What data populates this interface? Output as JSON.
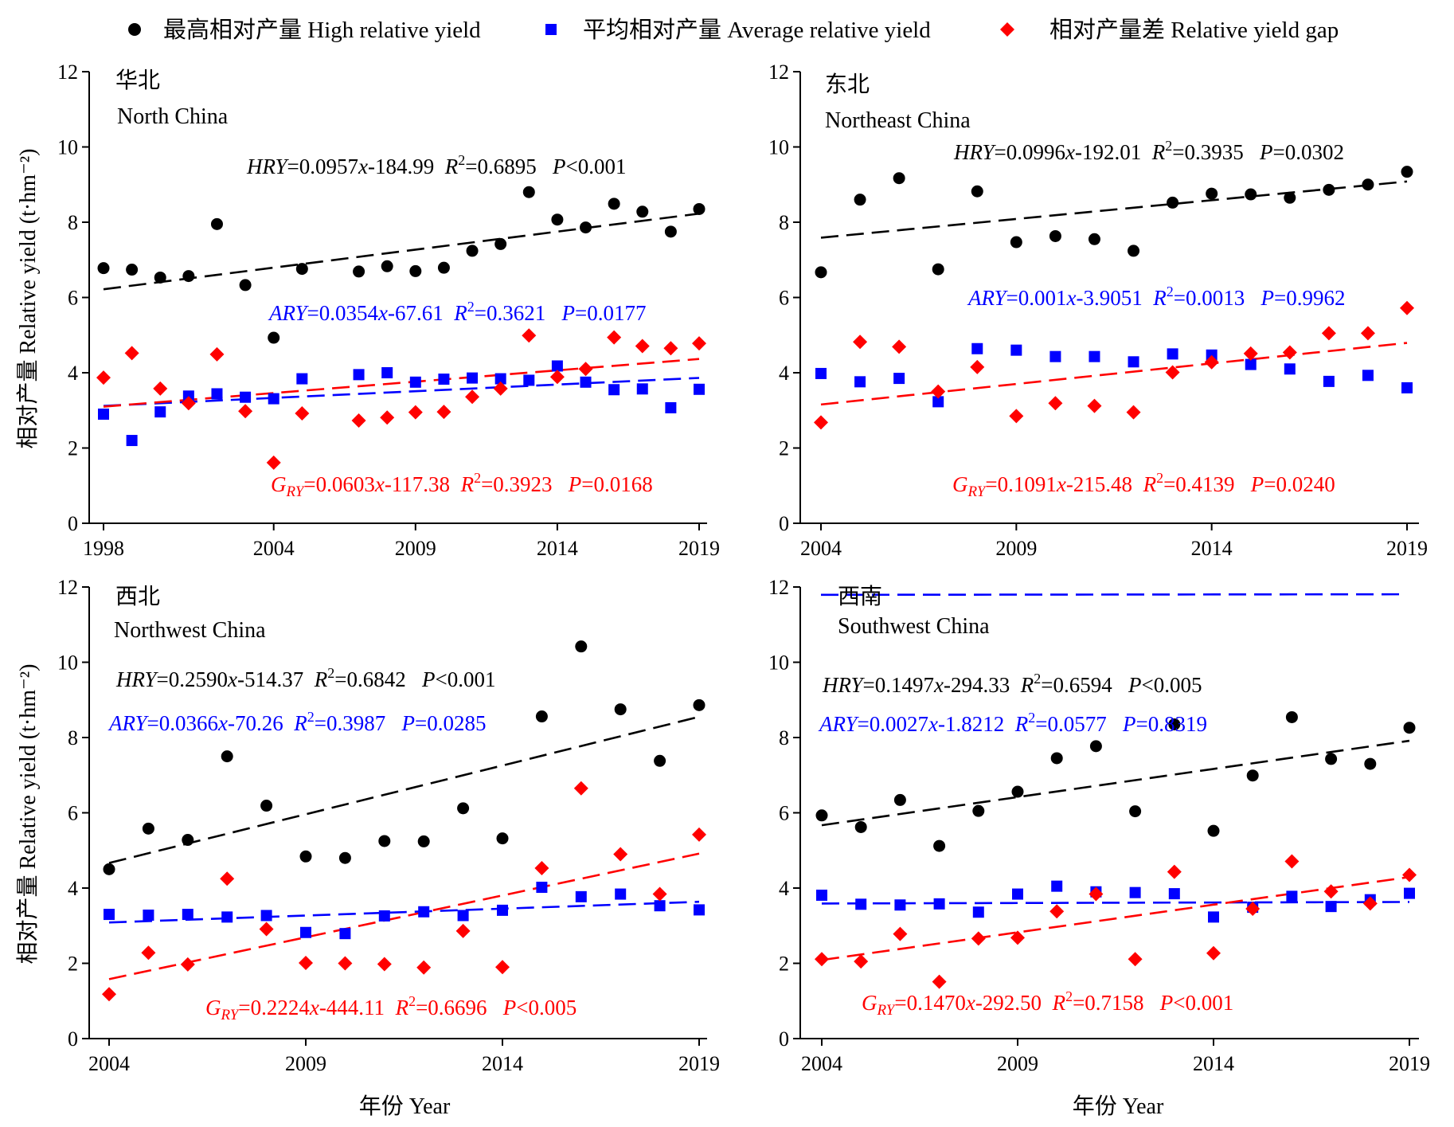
{
  "legend": {
    "items": [
      {
        "key": "hry",
        "label": "最高相对产量 High relative yield",
        "color": "#000000",
        "marker": "circle"
      },
      {
        "key": "ary",
        "label": "平均相对产量  Average relative yield",
        "color": "#0000ff",
        "marker": "square"
      },
      {
        "key": "gry",
        "label": "相对产量差 Relative yield gap",
        "color": "#ff0000",
        "marker": "diamond"
      }
    ]
  },
  "axes": {
    "ylabel": "相对产量 Relative yield (t·hm⁻²)",
    "xlabel": "年份 Year"
  },
  "colors": {
    "hry": "#000000",
    "ary": "#0000ff",
    "gry": "#ff0000"
  },
  "chart_data": [
    {
      "type": "scatter",
      "region_cn": "华北",
      "region_en": "North China",
      "xlim": [
        1998,
        2019
      ],
      "xticks": [
        1998,
        2004,
        2009,
        2014,
        2019
      ],
      "ylim": [
        0,
        12
      ],
      "yticks": [
        0,
        2,
        4,
        6,
        8,
        10,
        12
      ],
      "series": [
        {
          "key": "hry",
          "x": [
            1998,
            1999,
            2000,
            2001,
            2002,
            2003,
            2004,
            2005,
            2007,
            2008,
            2009,
            2010,
            2011,
            2012,
            2013,
            2014,
            2015,
            2016,
            2017,
            2018,
            2019
          ],
          "y": [
            6.78,
            6.74,
            6.53,
            6.57,
            7.95,
            6.33,
            4.93,
            6.76,
            6.69,
            6.83,
            6.7,
            6.79,
            7.24,
            7.42,
            8.8,
            8.07,
            7.86,
            8.49,
            8.28,
            7.75,
            8.35
          ],
          "trend": {
            "slope": 0.0957,
            "intercept": -184.99
          }
        },
        {
          "key": "ary",
          "x": [
            1998,
            1999,
            2000,
            2001,
            2002,
            2003,
            2004,
            2005,
            2007,
            2008,
            2009,
            2010,
            2011,
            2012,
            2013,
            2014,
            2015,
            2016,
            2017,
            2018,
            2019
          ],
          "y": [
            2.9,
            2.2,
            2.96,
            3.38,
            3.44,
            3.35,
            3.31,
            3.84,
            3.95,
            4.0,
            3.75,
            3.83,
            3.86,
            3.84,
            3.8,
            4.18,
            3.75,
            3.55,
            3.57,
            3.07,
            3.56
          ],
          "trend": {
            "slope": 0.0354,
            "intercept": -67.61
          }
        },
        {
          "key": "gry",
          "x": [
            1998,
            1999,
            2000,
            2001,
            2002,
            2003,
            2004,
            2005,
            2007,
            2008,
            2009,
            2010,
            2011,
            2012,
            2013,
            2014,
            2015,
            2016,
            2017,
            2018,
            2019
          ],
          "y": [
            3.87,
            4.52,
            3.58,
            3.19,
            4.49,
            2.98,
            1.61,
            2.92,
            2.73,
            2.81,
            2.95,
            2.96,
            3.36,
            3.58,
            4.99,
            3.89,
            4.1,
            4.94,
            4.71,
            4.65,
            4.78
          ],
          "trend": {
            "slope": 0.0603,
            "intercept": -117.38
          }
        }
      ],
      "annotations": {
        "hry": [
          "HRY",
          "=0.0957",
          "x",
          "-184.99  ",
          "R",
          "2",
          "=0.6895   ",
          "P",
          "<0.001"
        ],
        "ary": [
          "ARY",
          "=0.0354",
          "x",
          "-67.61  ",
          "R",
          "2",
          "=0.3621   ",
          "P",
          "=0.0177"
        ],
        "gry": [
          "G",
          "RY",
          "=0.0603",
          "x",
          "-117.38  ",
          "R",
          "2",
          "=0.3923   ",
          "P",
          "=0.0168"
        ]
      }
    },
    {
      "type": "scatter",
      "region_cn": "东北",
      "region_en": "Northeast China",
      "xlim": [
        2004,
        2019
      ],
      "xticks": [
        2004,
        2009,
        2014,
        2019
      ],
      "ylim": [
        0,
        12
      ],
      "yticks": [
        0,
        2,
        4,
        6,
        8,
        10,
        12
      ],
      "series": [
        {
          "key": "hry",
          "x": [
            2004,
            2005,
            2006,
            2007,
            2008,
            2009,
            2010,
            2011,
            2012,
            2013,
            2014,
            2015,
            2016,
            2017,
            2018,
            2019
          ],
          "y": [
            6.67,
            8.6,
            9.17,
            6.75,
            8.82,
            7.47,
            7.63,
            7.55,
            7.24,
            8.52,
            8.76,
            8.74,
            8.65,
            8.86,
            9.0,
            9.34
          ],
          "trend": {
            "slope": 0.0996,
            "intercept": -192.01
          }
        },
        {
          "key": "ary",
          "x": [
            2004,
            2005,
            2006,
            2007,
            2008,
            2009,
            2010,
            2011,
            2012,
            2013,
            2014,
            2015,
            2016,
            2017,
            2018,
            2019
          ],
          "y": [
            3.98,
            3.76,
            3.85,
            3.23,
            4.64,
            4.6,
            4.43,
            4.43,
            4.29,
            4.5,
            4.47,
            4.22,
            4.1,
            3.77,
            3.93,
            3.6
          ],
          "trend": {
            "slope": 0.001,
            "intercept": -3.9051
          }
        },
        {
          "key": "gry",
          "x": [
            2004,
            2005,
            2006,
            2007,
            2008,
            2009,
            2010,
            2011,
            2012,
            2013,
            2014,
            2015,
            2016,
            2017,
            2018,
            2019
          ],
          "y": [
            2.68,
            4.82,
            4.69,
            3.5,
            4.15,
            2.85,
            3.19,
            3.12,
            2.95,
            4.01,
            4.28,
            4.51,
            4.54,
            5.05,
            5.05,
            5.72
          ],
          "trend": {
            "slope": 0.1091,
            "intercept": -215.48
          }
        }
      ],
      "annotations": {
        "hry": [
          "HRY",
          "=0.0996",
          "x",
          "-192.01  ",
          "R",
          "2",
          "=0.3935   ",
          "P",
          "=0.0302"
        ],
        "ary": [
          "ARY",
          "=0.001",
          "x",
          "-3.9051  ",
          "R",
          "2",
          "=0.0013   ",
          "P",
          "=0.9962"
        ],
        "gry": [
          "G",
          "RY",
          "=0.1091",
          "x",
          "-215.48  ",
          "R",
          "2",
          "=0.4139   ",
          "P",
          "=0.0240"
        ]
      }
    },
    {
      "type": "scatter",
      "region_cn": "西北",
      "region_en": "Northwest China",
      "xlim": [
        2004,
        2019
      ],
      "xticks": [
        2004,
        2009,
        2014,
        2019
      ],
      "ylim": [
        0,
        12
      ],
      "yticks": [
        0,
        2,
        4,
        6,
        8,
        10,
        12
      ],
      "series": [
        {
          "key": "hry",
          "x": [
            2004,
            2005,
            2006,
            2007,
            2008,
            2009,
            2010,
            2011,
            2012,
            2013,
            2014,
            2015,
            2016,
            2017,
            2018,
            2019
          ],
          "y": [
            4.5,
            5.58,
            5.28,
            7.5,
            6.19,
            4.84,
            4.8,
            5.25,
            5.24,
            6.12,
            5.32,
            8.56,
            10.42,
            8.75,
            7.38,
            8.86
          ],
          "trend": {
            "slope": 0.259,
            "intercept": -514.37
          }
        },
        {
          "key": "ary",
          "x": [
            2004,
            2005,
            2006,
            2007,
            2008,
            2009,
            2010,
            2011,
            2012,
            2013,
            2014,
            2015,
            2016,
            2017,
            2018,
            2019
          ],
          "y": [
            3.3,
            3.28,
            3.3,
            3.23,
            3.27,
            2.82,
            2.79,
            3.26,
            3.37,
            3.27,
            3.41,
            4.02,
            3.77,
            3.84,
            3.53,
            3.42
          ],
          "trend": {
            "slope": 0.0366,
            "intercept": -70.26
          }
        },
        {
          "key": "gry",
          "x": [
            2004,
            2005,
            2006,
            2007,
            2008,
            2009,
            2010,
            2011,
            2012,
            2013,
            2014,
            2015,
            2016,
            2017,
            2018,
            2019
          ],
          "y": [
            1.18,
            2.28,
            1.97,
            4.25,
            2.91,
            2.01,
            2.0,
            1.98,
            1.89,
            2.86,
            1.9,
            4.53,
            6.65,
            4.9,
            3.84,
            5.42
          ],
          "trend": {
            "slope": 0.2224,
            "intercept": -444.11
          }
        }
      ],
      "annotations": {
        "hry": [
          "HRY",
          "=0.2590",
          "x",
          "-514.37  ",
          "R",
          "2",
          "=0.6842   ",
          "P",
          "<0.001"
        ],
        "ary": [
          "ARY",
          "=0.0366",
          "x",
          "-70.26  ",
          "R",
          "2",
          "=0.3987   ",
          "P",
          "=0.0285"
        ],
        "gry": [
          "G",
          "RY",
          "=0.2224",
          "x",
          "-444.11  ",
          "R",
          "2",
          "=0.6696   ",
          "P",
          "<0.005"
        ]
      }
    },
    {
      "type": "scatter",
      "region_cn": "西南",
      "region_en": "Southwest China",
      "xlim": [
        2004,
        2019
      ],
      "xticks": [
        2004,
        2009,
        2014,
        2019
      ],
      "ylim": [
        0,
        12
      ],
      "yticks": [
        0,
        2,
        4,
        6,
        8,
        10,
        12
      ],
      "series": [
        {
          "key": "hry",
          "x": [
            2004,
            2005,
            2006,
            2007,
            2008,
            2009,
            2010,
            2011,
            2012,
            2013,
            2014,
            2015,
            2016,
            2017,
            2018,
            2019
          ],
          "y": [
            5.93,
            5.62,
            6.34,
            5.12,
            6.05,
            6.56,
            7.45,
            7.77,
            6.04,
            8.35,
            5.52,
            6.99,
            8.54,
            7.43,
            7.3,
            8.26
          ],
          "trend": {
            "slope": 0.1497,
            "intercept": -294.33
          }
        },
        {
          "key": "ary",
          "x": [
            2004,
            2005,
            2006,
            2007,
            2008,
            2009,
            2010,
            2011,
            2012,
            2013,
            2014,
            2015,
            2016,
            2017,
            2018,
            2019
          ],
          "y": [
            3.81,
            3.57,
            3.55,
            3.58,
            3.36,
            3.84,
            4.05,
            3.9,
            3.88,
            3.85,
            3.23,
            3.49,
            3.78,
            3.51,
            3.69,
            3.86
          ],
          "trend": {
            "slope": 0.0027,
            "intercept": -1.8212
          }
        },
        {
          "key": "gry",
          "x": [
            2004,
            2005,
            2006,
            2007,
            2008,
            2009,
            2010,
            2011,
            2012,
            2013,
            2014,
            2015,
            2016,
            2017,
            2018,
            2019
          ],
          "y": [
            2.11,
            2.05,
            2.78,
            1.51,
            2.66,
            2.68,
            3.38,
            3.84,
            2.11,
            4.43,
            2.27,
            3.45,
            4.71,
            3.91,
            3.59,
            4.35
          ],
          "trend": {
            "slope": 0.147,
            "intercept": -292.5
          }
        }
      ],
      "annotations": {
        "hry": [
          "HRY",
          "=0.1497",
          "x",
          "-294.33  ",
          "R",
          "2",
          "=0.6594   ",
          "P",
          "<0.005"
        ],
        "ary": [
          "ARY",
          "=0.0027",
          "x",
          "-1.8212  ",
          "R",
          "2",
          "=0.0577   ",
          "P",
          "=0.8319"
        ],
        "gry": [
          "G",
          "RY",
          "=0.1470",
          "x",
          "-292.50  ",
          "R",
          "2",
          "=0.7158   ",
          "P",
          "<0.001"
        ]
      }
    }
  ]
}
